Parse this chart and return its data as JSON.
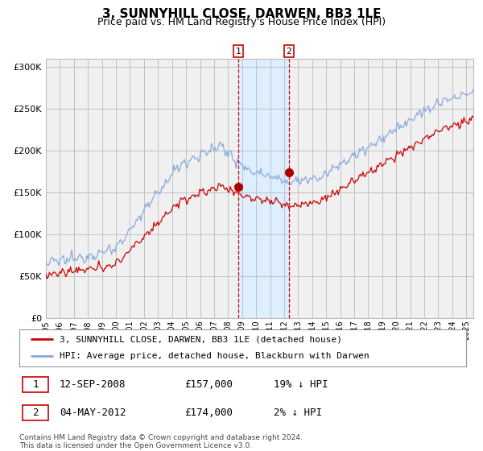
{
  "title": "3, SUNNYHILL CLOSE, DARWEN, BB3 1LE",
  "subtitle": "Price paid vs. HM Land Registry's House Price Index (HPI)",
  "title_fontsize": 11,
  "subtitle_fontsize": 9,
  "red_label": "3, SUNNYHILL CLOSE, DARWEN, BB3 1LE (detached house)",
  "blue_label": "HPI: Average price, detached house, Blackburn with Darwen",
  "sale1_date": "12-SEP-2008",
  "sale1_price": 157000,
  "sale1_pct": "19%",
  "sale1_dir": "↓",
  "sale2_date": "04-MAY-2012",
  "sale2_price": 174000,
  "sale2_pct": "2%",
  "sale2_dir": "↓",
  "footnote": "Contains HM Land Registry data © Crown copyright and database right 2024.\nThis data is licensed under the Open Government Licence v3.0.",
  "red_color": "#cc0000",
  "blue_color": "#88aadd",
  "dot_color": "#aa0000",
  "shade_color": "#ddeeff",
  "vline_color": "#cc0000",
  "grid_color": "#bbbbbb",
  "bg_color": "#f0f0f0",
  "ylim": [
    0,
    310000
  ],
  "yticks": [
    0,
    50000,
    100000,
    150000,
    200000,
    250000,
    300000
  ],
  "sale1_x": 2008.71,
  "sale2_x": 2012.34,
  "shade_x1": 2008.71,
  "shade_x2": 2012.34,
  "xmin": 1995,
  "xmax": 2025.5
}
